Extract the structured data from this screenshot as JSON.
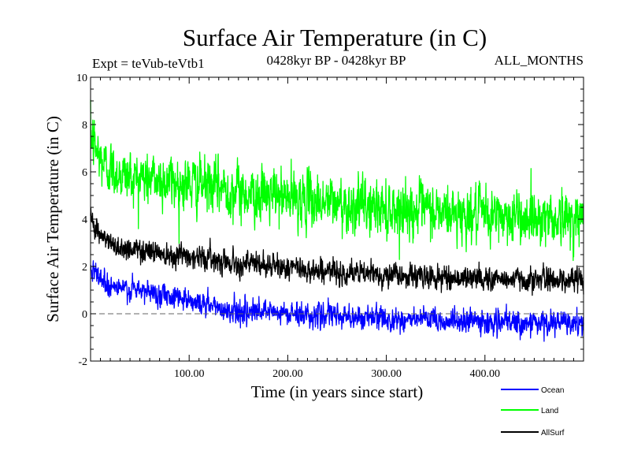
{
  "chart_data": {
    "type": "line",
    "title": "Surface Air Temperature (in C)",
    "subtitle_left": "Expt = teVub-teVtb1",
    "subtitle_center": "0428kyr BP - 0428kyr BP",
    "subtitle_right": "ALL_MONTHS",
    "xlabel": "Time (in years since start)",
    "ylabel": "Surface Air Temperature (in C)",
    "xlim": [
      0,
      500
    ],
    "ylim": [
      -2,
      10
    ],
    "x_ticks": [
      100,
      200,
      300,
      400
    ],
    "x_tick_labels": [
      "100.00",
      "200.00",
      "300.00",
      "400.00"
    ],
    "y_ticks": [
      -2,
      0,
      2,
      4,
      6,
      8,
      10
    ],
    "y_tick_labels": [
      "-2",
      "0",
      "2",
      "4",
      "6",
      "8",
      "10"
    ],
    "reference_line": 0,
    "legend_placement": "bottom-right",
    "series": [
      {
        "name": "Land",
        "color": "#00ff00",
        "x": [
          0,
          5,
          10,
          20,
          30,
          40,
          50,
          60,
          70,
          80,
          90,
          100,
          110,
          120,
          130,
          140,
          150,
          175,
          200,
          225,
          250,
          275,
          300,
          325,
          350,
          375,
          400,
          425,
          450,
          475,
          500
        ],
        "values": [
          7.6,
          7.0,
          6.5,
          6.1,
          5.9,
          5.8,
          5.75,
          5.7,
          5.65,
          5.6,
          5.55,
          5.5,
          5.45,
          5.4,
          5.35,
          5.25,
          5.15,
          5.0,
          4.9,
          4.8,
          4.65,
          4.55,
          4.45,
          4.4,
          4.3,
          4.2,
          4.15,
          4.1,
          4.1,
          4.05,
          4.0
        ],
        "noise": 0.8
      },
      {
        "name": "AllSurf",
        "color": "#000000",
        "x": [
          0,
          5,
          10,
          20,
          30,
          40,
          50,
          60,
          70,
          80,
          90,
          100,
          110,
          120,
          130,
          140,
          150,
          175,
          200,
          225,
          250,
          275,
          300,
          325,
          350,
          375,
          400,
          425,
          450,
          475,
          500
        ],
        "values": [
          4.2,
          3.7,
          3.3,
          2.95,
          2.8,
          2.75,
          2.7,
          2.65,
          2.6,
          2.55,
          2.5,
          2.45,
          2.4,
          2.35,
          2.3,
          2.2,
          2.15,
          2.05,
          1.95,
          1.85,
          1.75,
          1.7,
          1.65,
          1.6,
          1.55,
          1.5,
          1.5,
          1.45,
          1.45,
          1.45,
          1.45
        ],
        "noise": 0.35
      },
      {
        "name": "Ocean",
        "color": "#0000ff",
        "x": [
          0,
          5,
          10,
          20,
          30,
          40,
          50,
          60,
          70,
          80,
          90,
          100,
          110,
          120,
          130,
          140,
          150,
          175,
          200,
          225,
          250,
          275,
          300,
          325,
          350,
          375,
          400,
          425,
          450,
          475,
          500
        ],
        "values": [
          2.1,
          1.8,
          1.5,
          1.2,
          1.05,
          1.0,
          0.95,
          0.9,
          0.85,
          0.8,
          0.75,
          0.6,
          0.45,
          0.35,
          0.25,
          0.15,
          0.1,
          0.05,
          0.0,
          -0.05,
          -0.1,
          -0.15,
          -0.2,
          -0.25,
          -0.3,
          -0.3,
          -0.35,
          -0.4,
          -0.4,
          -0.4,
          -0.45
        ],
        "noise": 0.35
      }
    ]
  },
  "legend": {
    "items": [
      {
        "label": "Ocean",
        "color": "#0000ff"
      },
      {
        "label": "Land",
        "color": "#00ff00"
      },
      {
        "label": "AllSurf",
        "color": "#000000"
      }
    ]
  }
}
